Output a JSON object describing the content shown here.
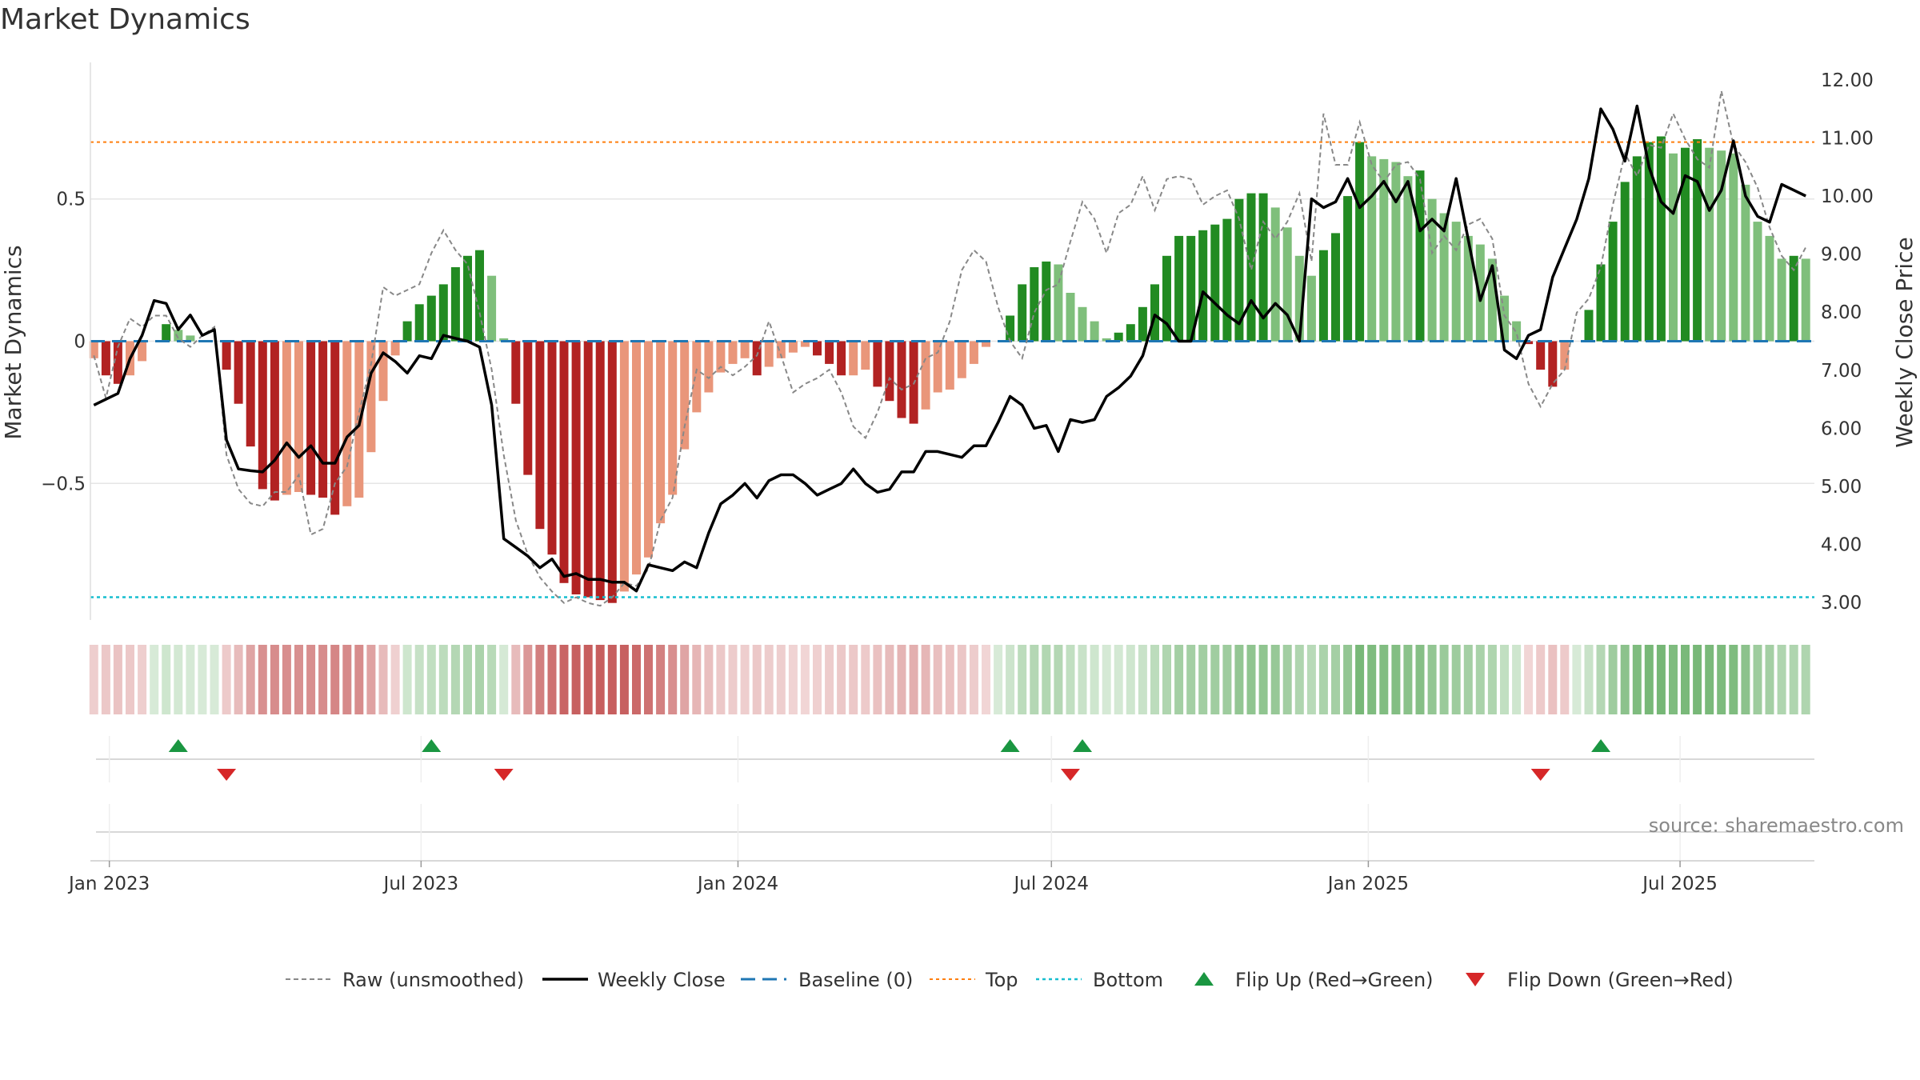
{
  "title": "Market Dynamics",
  "source_note": "source: sharemaestro.com",
  "chart_data": {
    "type": "bar",
    "title": "Market Dynamics",
    "ylabel": "Market Dynamics",
    "y2label": "Weekly Close Price",
    "ylim": [
      -0.98,
      0.98
    ],
    "y2lim": [
      2.7,
      12.3
    ],
    "y_ticks": [
      -0.5,
      0,
      0.5
    ],
    "y_tick_labels": [
      "−0.5",
      "0",
      "0.5"
    ],
    "y2_ticks": [
      3,
      4,
      5,
      6,
      7,
      8,
      9,
      10,
      11,
      12
    ],
    "y2_tick_labels": [
      "3.00",
      "4.00",
      "5.00",
      "6.00",
      "7.00",
      "8.00",
      "9.00",
      "10.00",
      "11.00",
      "12.00"
    ],
    "x_range": [
      "2022-12-21",
      "2025-09-17"
    ],
    "x_ticks": [
      "2023-01-01",
      "2023-07-01",
      "2024-01-01",
      "2024-07-01",
      "2025-01-01",
      "2025-07-01"
    ],
    "x_tick_labels": [
      "Jan 2023",
      "Jul 2023",
      "Jan 2024",
      "Jul 2024",
      "Jan 2025",
      "Jul 2025"
    ],
    "top_level": 0.7,
    "bottom_level": -0.9,
    "baseline": 0,
    "grid": true,
    "legend_position": "bottom",
    "colors": {
      "strong_red": "#b22222",
      "weak_red": "#e9967a",
      "strong_green": "#228b22",
      "weak_green": "#7fbf7b",
      "raw_line": "#888888",
      "close_line": "#000000",
      "baseline": "#1f77b4",
      "top": "#ff7f0e",
      "bottom": "#17becf",
      "flip_up": "#1a9641",
      "flip_down": "#d62728"
    },
    "weekly_dates": [
      "2022-12-23",
      "2022-12-30",
      "2023-01-06",
      "2023-01-13",
      "2023-01-20",
      "2023-01-27",
      "2023-02-03",
      "2023-02-10",
      "2023-02-17",
      "2023-02-24",
      "2023-03-03",
      "2023-03-10",
      "2023-03-17",
      "2023-03-24",
      "2023-03-31",
      "2023-04-07",
      "2023-04-14",
      "2023-04-21",
      "2023-04-28",
      "2023-05-05",
      "2023-05-12",
      "2023-05-19",
      "2023-05-26",
      "2023-06-02",
      "2023-06-09",
      "2023-06-16",
      "2023-06-23",
      "2023-06-30",
      "2023-07-07",
      "2023-07-14",
      "2023-07-21",
      "2023-07-28",
      "2023-08-04",
      "2023-08-11",
      "2023-08-18",
      "2023-08-25",
      "2023-09-01",
      "2023-09-08",
      "2023-09-15",
      "2023-09-22",
      "2023-09-29",
      "2023-10-06",
      "2023-10-13",
      "2023-10-20",
      "2023-10-27",
      "2023-11-03",
      "2023-11-10",
      "2023-11-17",
      "2023-11-24",
      "2023-12-01",
      "2023-12-08",
      "2023-12-15",
      "2023-12-22",
      "2023-12-29",
      "2024-01-05",
      "2024-01-12",
      "2024-01-19",
      "2024-01-26",
      "2024-02-02",
      "2024-02-09",
      "2024-02-16",
      "2024-02-23",
      "2024-03-01",
      "2024-03-08",
      "2024-03-15",
      "2024-03-22",
      "2024-03-29",
      "2024-04-05",
      "2024-04-12",
      "2024-04-19",
      "2024-04-26",
      "2024-05-03",
      "2024-05-10",
      "2024-05-17",
      "2024-05-24",
      "2024-05-31",
      "2024-06-07",
      "2024-06-14",
      "2024-06-21",
      "2024-06-28",
      "2024-07-05",
      "2024-07-12",
      "2024-07-19",
      "2024-07-26",
      "2024-08-02",
      "2024-08-09",
      "2024-08-16",
      "2024-08-23",
      "2024-08-30",
      "2024-09-06",
      "2024-09-13",
      "2024-09-20",
      "2024-09-27",
      "2024-10-04",
      "2024-10-11",
      "2024-10-18",
      "2024-10-25",
      "2024-11-01",
      "2024-11-08",
      "2024-11-15",
      "2024-11-22",
      "2024-11-29",
      "2024-12-06",
      "2024-12-13",
      "2024-12-20",
      "2024-12-27",
      "2025-01-03",
      "2025-01-10",
      "2025-01-17",
      "2025-01-24",
      "2025-01-31",
      "2025-02-07",
      "2025-02-14",
      "2025-02-21",
      "2025-02-28",
      "2025-03-07",
      "2025-03-14",
      "2025-03-21",
      "2025-03-28",
      "2025-04-04",
      "2025-04-11",
      "2025-04-18",
      "2025-04-25",
      "2025-05-02",
      "2025-05-09",
      "2025-05-16",
      "2025-05-23",
      "2025-05-30",
      "2025-06-06",
      "2025-06-13",
      "2025-06-20",
      "2025-06-27",
      "2025-07-04",
      "2025-07-11",
      "2025-07-18",
      "2025-07-25",
      "2025-08-01",
      "2025-08-08",
      "2025-08-15",
      "2025-08-22",
      "2025-08-29",
      "2025-09-05",
      "2025-09-12"
    ],
    "series": [
      {
        "name": "Market Dynamics",
        "values": [
          -0.06,
          -0.12,
          -0.15,
          -0.12,
          -0.07,
          0.0,
          0.06,
          0.04,
          0.02,
          0.0,
          0.0,
          -0.1,
          -0.22,
          -0.37,
          -0.52,
          -0.56,
          -0.54,
          -0.53,
          -0.54,
          -0.55,
          -0.61,
          -0.58,
          -0.55,
          -0.39,
          -0.21,
          -0.05,
          0.07,
          0.13,
          0.16,
          0.2,
          0.26,
          0.3,
          0.32,
          0.23,
          0.01,
          -0.22,
          -0.47,
          -0.66,
          -0.75,
          -0.85,
          -0.89,
          -0.9,
          -0.91,
          -0.92,
          -0.88,
          -0.82,
          -0.76,
          -0.64,
          -0.54,
          -0.38,
          -0.25,
          -0.18,
          -0.11,
          -0.08,
          -0.06,
          -0.12,
          -0.09,
          -0.06,
          -0.04,
          -0.02,
          -0.05,
          -0.08,
          -0.12,
          -0.12,
          -0.1,
          -0.16,
          -0.21,
          -0.27,
          -0.29,
          -0.24,
          -0.18,
          -0.17,
          -0.13,
          -0.08,
          -0.02,
          0.0,
          0.09,
          0.2,
          0.26,
          0.28,
          0.27,
          0.17,
          0.12,
          0.07,
          0.01,
          0.03,
          0.06,
          0.12,
          0.2,
          0.3,
          0.37,
          0.37,
          0.39,
          0.41,
          0.43,
          0.5,
          0.52,
          0.52,
          0.47,
          0.4,
          0.3,
          0.23,
          0.32,
          0.38,
          0.51,
          0.7,
          0.65,
          0.64,
          0.63,
          0.58,
          0.6,
          0.5,
          0.45,
          0.42,
          0.37,
          0.34,
          0.29,
          0.16,
          0.07,
          -0.01,
          -0.1,
          -0.16,
          -0.1,
          0.0,
          0.11,
          0.27,
          0.42,
          0.56,
          0.65,
          0.7,
          0.72,
          0.66,
          0.68,
          0.71,
          0.68,
          0.67,
          0.66,
          0.55,
          0.42,
          0.37,
          0.29,
          0.3,
          0.29,
          0.3,
          0.3
        ]
      },
      {
        "name": "Raw (unsmoothed)",
        "values": [
          -0.05,
          -0.2,
          -0.02,
          0.08,
          0.05,
          0.09,
          0.09,
          0.01,
          -0.02,
          0.02,
          0.05,
          -0.4,
          -0.52,
          -0.57,
          -0.58,
          -0.53,
          -0.53,
          -0.47,
          -0.68,
          -0.66,
          -0.5,
          -0.44,
          -0.25,
          -0.08,
          0.19,
          0.16,
          0.18,
          0.2,
          0.31,
          0.39,
          0.32,
          0.27,
          0.1,
          -0.1,
          -0.4,
          -0.63,
          -0.75,
          -0.83,
          -0.88,
          -0.92,
          -0.9,
          -0.92,
          -0.93,
          -0.9,
          -0.85,
          -0.86,
          -0.8,
          -0.63,
          -0.55,
          -0.3,
          -0.1,
          -0.13,
          -0.09,
          -0.12,
          -0.09,
          -0.05,
          0.07,
          -0.05,
          -0.18,
          -0.15,
          -0.13,
          -0.1,
          -0.18,
          -0.3,
          -0.34,
          -0.25,
          -0.13,
          -0.17,
          -0.15,
          -0.06,
          -0.04,
          0.07,
          0.25,
          0.32,
          0.28,
          0.12,
          0.0,
          -0.06,
          0.1,
          0.18,
          0.2,
          0.35,
          0.49,
          0.43,
          0.31,
          0.45,
          0.48,
          0.58,
          0.46,
          0.57,
          0.58,
          0.57,
          0.48,
          0.51,
          0.53,
          0.43,
          0.25,
          0.42,
          0.36,
          0.42,
          0.52,
          0.28,
          0.8,
          0.62,
          0.62,
          0.77,
          0.62,
          0.56,
          0.62,
          0.63,
          0.57,
          0.31,
          0.37,
          0.32,
          0.41,
          0.43,
          0.36,
          0.09,
          0.03,
          -0.15,
          -0.23,
          -0.15,
          -0.1,
          0.1,
          0.15,
          0.26,
          0.48,
          0.66,
          0.58,
          0.69,
          0.68,
          0.8,
          0.71,
          0.64,
          0.61,
          0.88,
          0.69,
          0.63,
          0.54,
          0.4,
          0.3,
          0.25,
          0.33,
          0.36,
          0.26,
          0.3
        ]
      },
      {
        "name": "Weekly Close",
        "values": [
          6.4,
          6.5,
          6.6,
          7.2,
          7.6,
          8.2,
          8.15,
          7.7,
          7.95,
          7.6,
          7.7,
          5.8,
          5.3,
          5.27,
          5.25,
          5.45,
          5.75,
          5.5,
          5.7,
          5.4,
          5.4,
          5.85,
          6.05,
          6.95,
          7.3,
          7.15,
          6.95,
          7.25,
          7.2,
          7.6,
          7.55,
          7.5,
          7.4,
          6.4,
          4.1,
          3.95,
          3.8,
          3.6,
          3.75,
          3.45,
          3.5,
          3.4,
          3.4,
          3.35,
          3.35,
          3.2,
          3.65,
          3.6,
          3.55,
          3.7,
          3.6,
          4.2,
          4.7,
          4.85,
          5.05,
          4.8,
          5.1,
          5.2,
          5.2,
          5.05,
          4.85,
          4.95,
          5.05,
          5.3,
          5.05,
          4.9,
          4.95,
          5.25,
          5.25,
          5.6,
          5.6,
          5.55,
          5.5,
          5.7,
          5.7,
          6.1,
          6.55,
          6.4,
          6.0,
          6.05,
          5.6,
          6.15,
          6.1,
          6.15,
          6.55,
          6.7,
          6.9,
          7.25,
          7.95,
          7.8,
          7.5,
          7.5,
          8.35,
          8.15,
          7.95,
          7.8,
          8.2,
          7.9,
          8.15,
          7.95,
          7.5,
          9.95,
          9.8,
          9.9,
          10.3,
          9.8,
          10.0,
          10.25,
          9.9,
          10.25,
          9.4,
          9.6,
          9.4,
          10.3,
          9.25,
          8.2,
          8.8,
          7.35,
          7.2,
          7.6,
          7.7,
          8.6,
          9.1,
          9.6,
          10.3,
          11.5,
          11.15,
          10.6,
          11.55,
          10.5,
          9.9,
          9.7,
          10.35,
          10.25,
          9.75,
          10.1,
          10.95,
          10.0,
          9.65,
          9.55,
          10.2,
          10.1,
          10.0,
          9.9,
          9.8,
          9.55
        ]
      }
    ],
    "flip_up_dates": [
      "2023-02-10",
      "2023-07-07",
      "2024-06-07",
      "2024-07-19",
      "2025-05-16"
    ],
    "flip_down_dates": [
      "2023-03-10",
      "2023-08-18",
      "2024-07-12",
      "2025-04-11"
    ],
    "legend": [
      "Raw (unsmoothed)",
      "Weekly Close",
      "Baseline (0)",
      "Top",
      "Bottom",
      "Flip Up (Red→Green)",
      "Flip Down (Green→Red)"
    ]
  }
}
